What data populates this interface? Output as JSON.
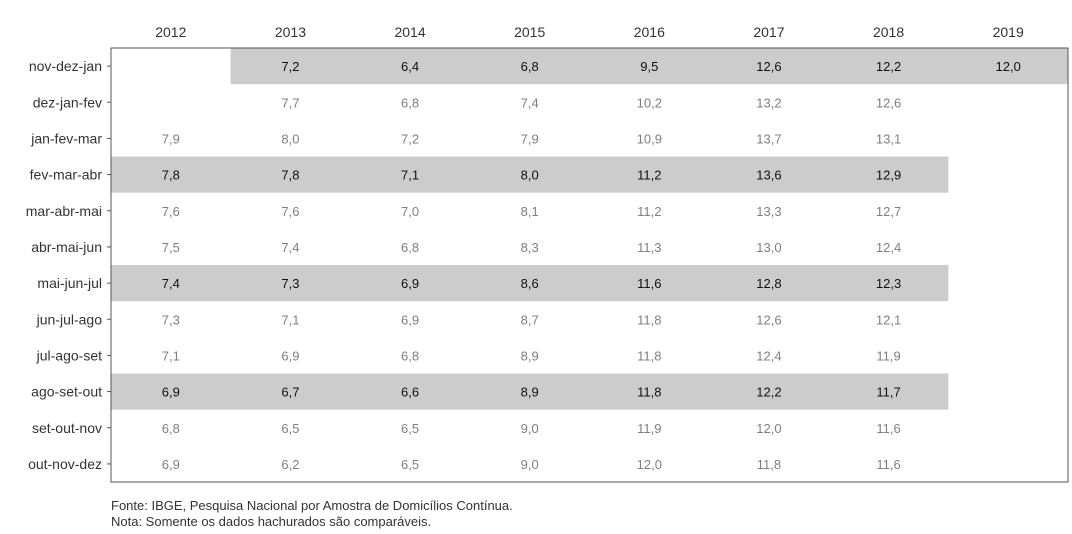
{
  "chart_data": {
    "type": "table",
    "title": "",
    "xlabel": "",
    "ylabel": "",
    "years": [
      "2012",
      "2013",
      "2014",
      "2015",
      "2016",
      "2017",
      "2018",
      "2019"
    ],
    "rows": [
      {
        "label": "nov-dez-jan",
        "shaded": true,
        "values": [
          null,
          "7,2",
          "6,4",
          "6,8",
          "9,5",
          "12,6",
          "12,2",
          "12,0"
        ]
      },
      {
        "label": "dez-jan-fev",
        "shaded": false,
        "values": [
          null,
          "7,7",
          "6,8",
          "7,4",
          "10,2",
          "13,2",
          "12,6",
          null
        ]
      },
      {
        "label": "jan-fev-mar",
        "shaded": false,
        "values": [
          "7,9",
          "8,0",
          "7,2",
          "7,9",
          "10,9",
          "13,7",
          "13,1",
          null
        ]
      },
      {
        "label": "fev-mar-abr",
        "shaded": true,
        "values": [
          "7,8",
          "7,8",
          "7,1",
          "8,0",
          "11,2",
          "13,6",
          "12,9",
          null
        ]
      },
      {
        "label": "mar-abr-mai",
        "shaded": false,
        "values": [
          "7,6",
          "7,6",
          "7,0",
          "8,1",
          "11,2",
          "13,3",
          "12,7",
          null
        ]
      },
      {
        "label": "abr-mai-jun",
        "shaded": false,
        "values": [
          "7,5",
          "7,4",
          "6,8",
          "8,3",
          "11,3",
          "13,0",
          "12,4",
          null
        ]
      },
      {
        "label": "mai-jun-jul",
        "shaded": true,
        "values": [
          "7,4",
          "7,3",
          "6,9",
          "8,6",
          "11,6",
          "12,8",
          "12,3",
          null
        ]
      },
      {
        "label": "jun-jul-ago",
        "shaded": false,
        "values": [
          "7,3",
          "7,1",
          "6,9",
          "8,7",
          "11,8",
          "12,6",
          "12,1",
          null
        ]
      },
      {
        "label": "jul-ago-set",
        "shaded": false,
        "values": [
          "7,1",
          "6,9",
          "6,8",
          "8,9",
          "11,8",
          "12,4",
          "11,9",
          null
        ]
      },
      {
        "label": "ago-set-out",
        "shaded": true,
        "values": [
          "6,9",
          "6,7",
          "6,6",
          "8,9",
          "11,8",
          "12,2",
          "11,7",
          null
        ]
      },
      {
        "label": "set-out-nov",
        "shaded": false,
        "values": [
          "6,8",
          "6,5",
          "6,5",
          "9,0",
          "11,9",
          "12,0",
          "11,6",
          null
        ]
      },
      {
        "label": "out-nov-dez",
        "shaded": false,
        "values": [
          "6,9",
          "6,2",
          "6,5",
          "9,0",
          "12,0",
          "11,8",
          "11,6",
          null
        ]
      }
    ],
    "colors": {
      "shade": "#cccccc",
      "text_shaded": "#111111",
      "text_plain": "#7f7f7f",
      "axis_text": "#333333",
      "border": "#555555"
    }
  },
  "footer": {
    "source": "Fonte: IBGE, Pesquisa Nacional por Amostra de Domicílios Contínua.",
    "note": " Nota: Somente os dados hachurados são comparáveis."
  }
}
